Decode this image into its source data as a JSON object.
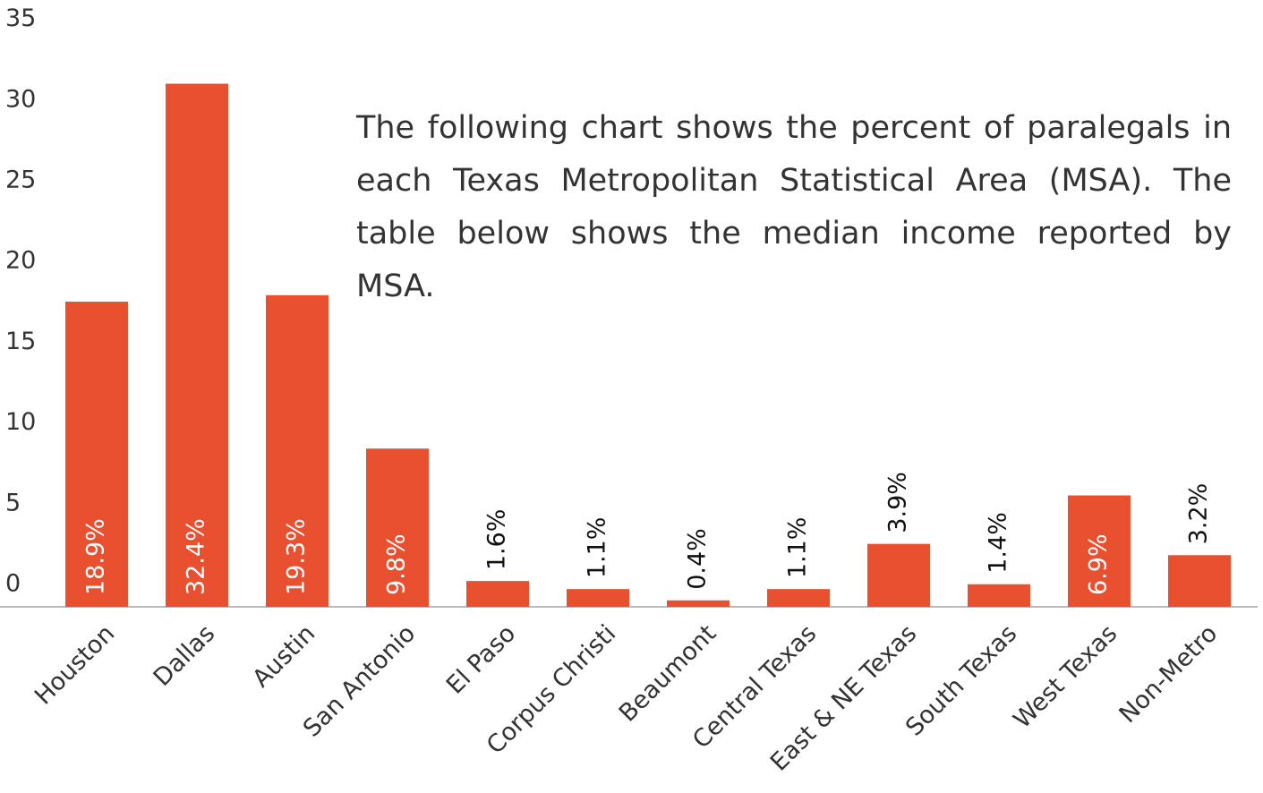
{
  "chart_data": {
    "type": "bar",
    "annotation": "The following chart shows the percent of paralegals in each Texas Metropolitan Statistical Area (MSA). The table below shows the median income reported by MSA.",
    "categories": [
      "Houston",
      "Dallas",
      "Austin",
      "San Antonio",
      "El Paso",
      "Corpus Christi",
      "Beaumont",
      "Central Texas",
      "East & NE Texas",
      "South Texas",
      "West Texas",
      "Non-Metro"
    ],
    "values": [
      18.9,
      32.4,
      19.3,
      9.8,
      1.6,
      1.1,
      0.4,
      1.1,
      3.9,
      1.4,
      6.9,
      3.2
    ],
    "value_labels": [
      "18.9%",
      "32.4%",
      "19.3%",
      "9.8%",
      "1.6%",
      "1.1%",
      "0.4%",
      "1.1%",
      "3.9%",
      "1.4%",
      "6.9%",
      "3.2%"
    ],
    "color": "#e8502f",
    "ylim": [
      0,
      35
    ],
    "yticks": [
      0,
      5,
      10,
      15,
      20,
      25,
      30,
      35
    ],
    "grid": false
  }
}
